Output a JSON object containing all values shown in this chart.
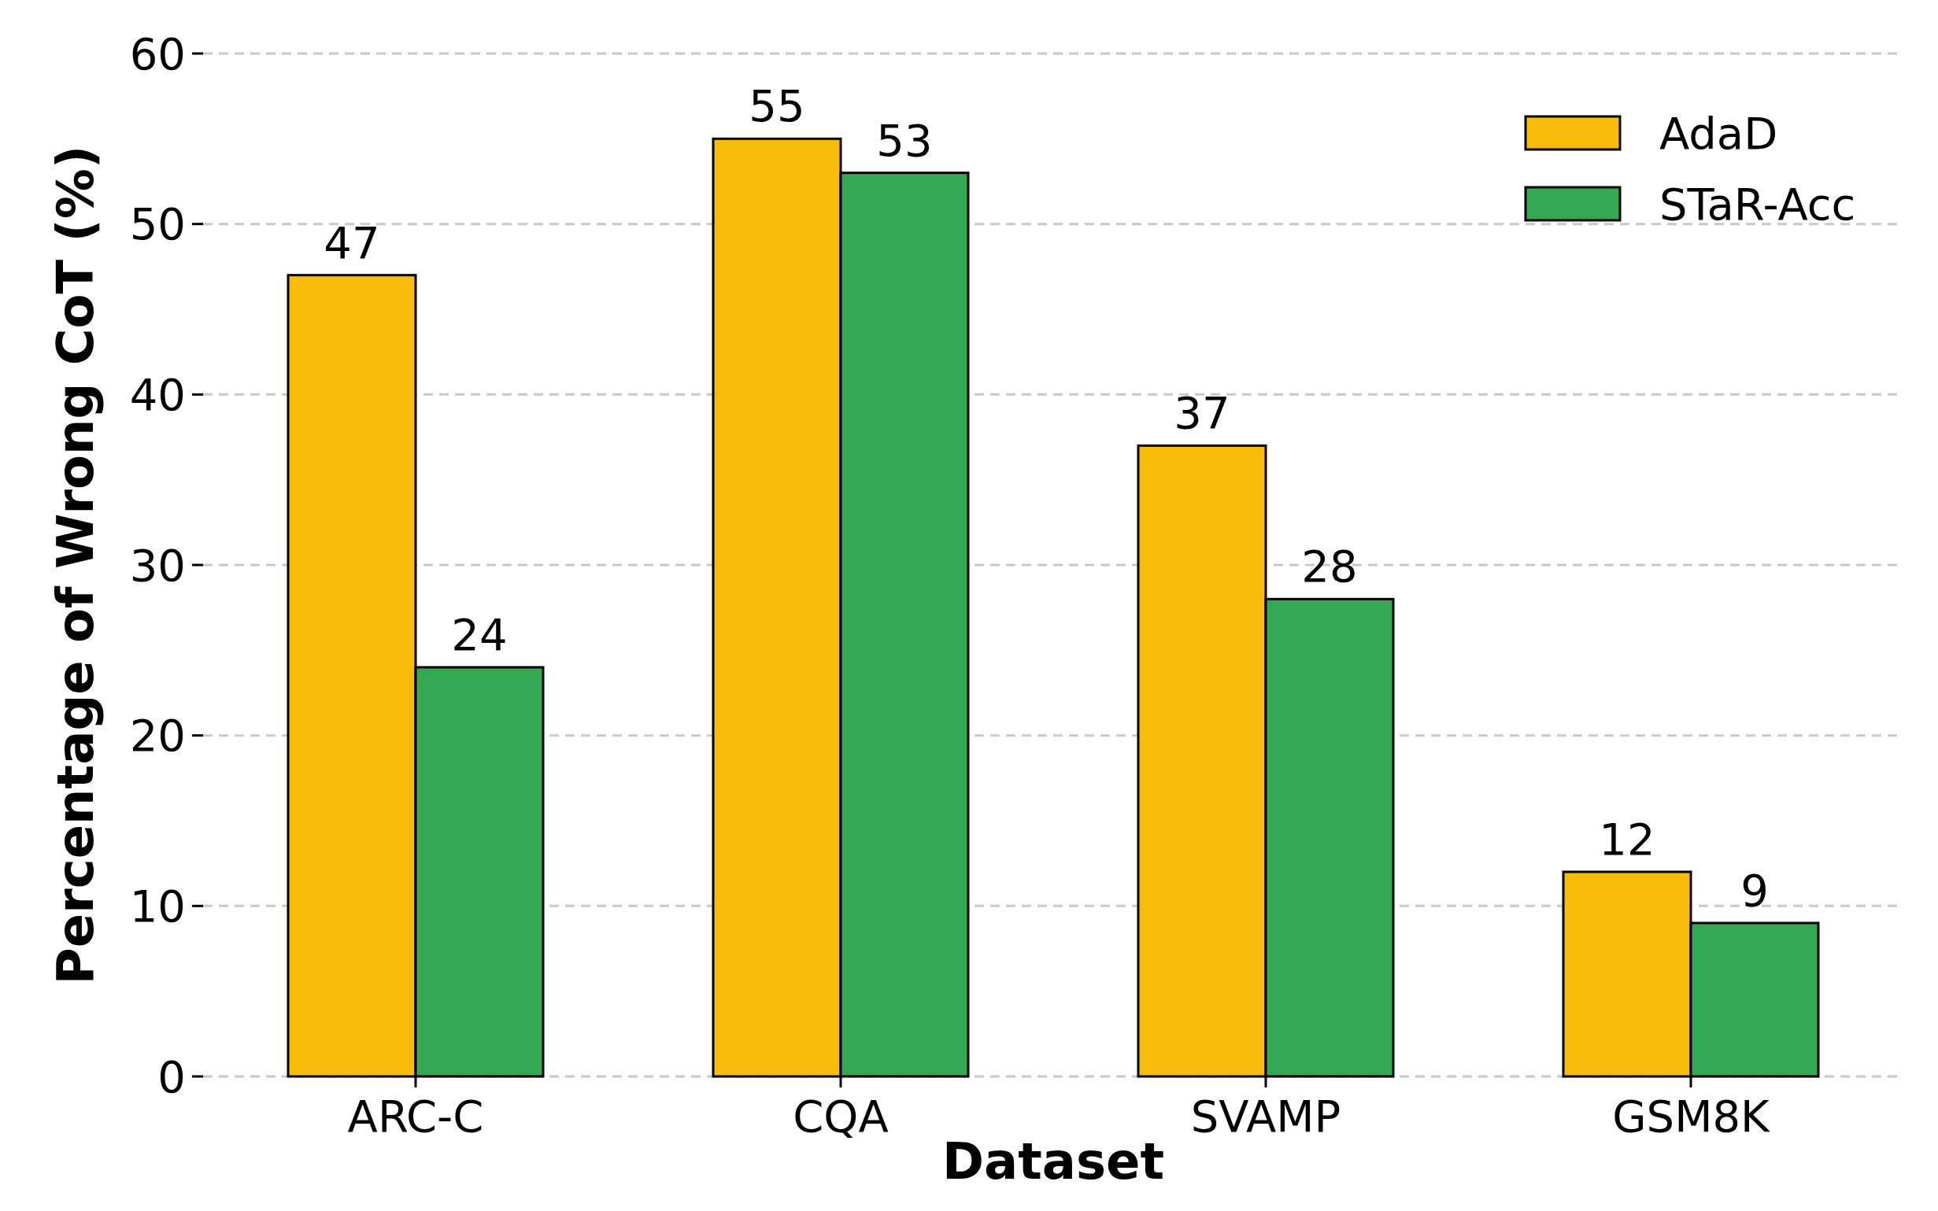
{
  "chart_data": {
    "type": "bar",
    "xlabel": "Dataset",
    "ylabel": "Percentage of Wrong CoT (%)",
    "categories": [
      "ARC-C",
      "CQA",
      "SVAMP",
      "GSM8K"
    ],
    "series": [
      {
        "name": "AdaD",
        "color": "#f9bc08",
        "values": [
          47,
          55,
          37,
          12
        ]
      },
      {
        "name": "STaR-Acc",
        "color": "#35a853",
        "values": [
          24,
          53,
          28,
          9
        ]
      }
    ],
    "ylim": [
      0,
      60
    ],
    "yticks": [
      0,
      10,
      20,
      30,
      40,
      50,
      60
    ],
    "grid": "y",
    "legend": "top right",
    "data_labels": true
  }
}
